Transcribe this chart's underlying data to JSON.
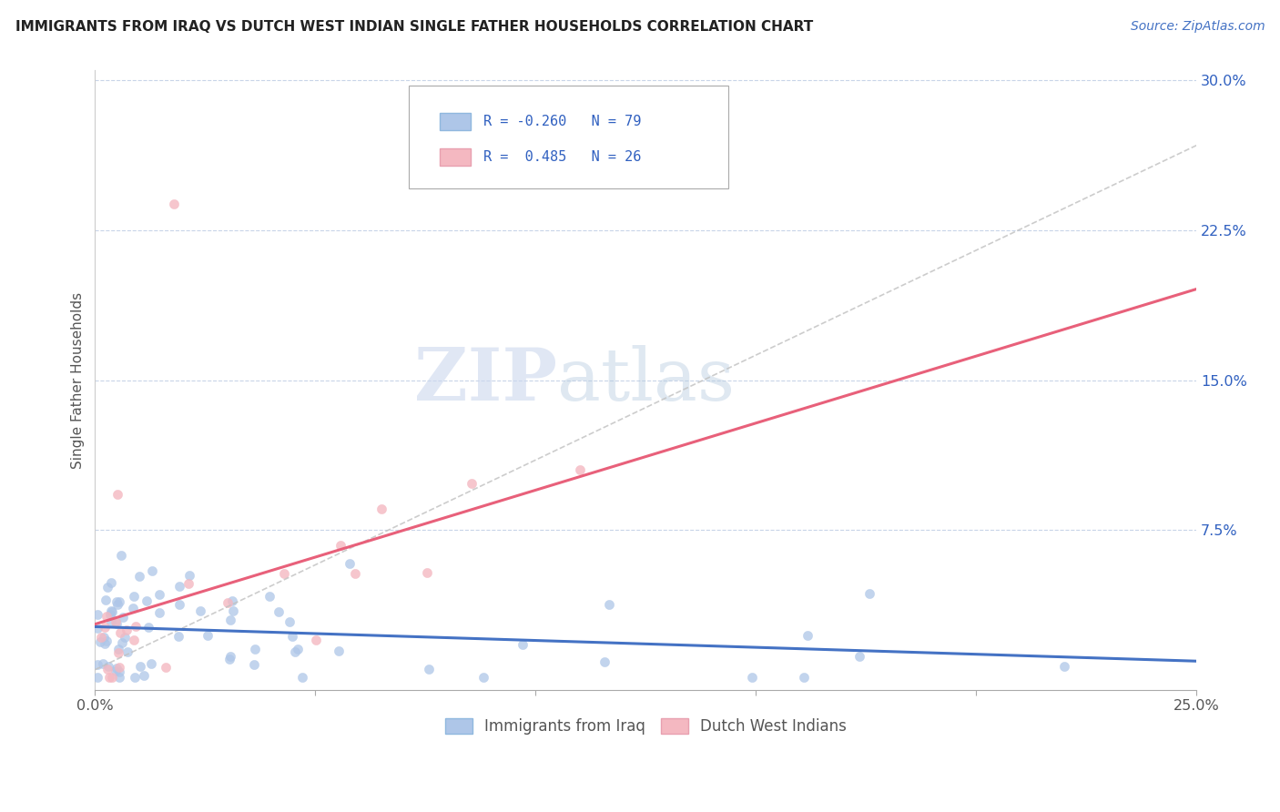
{
  "title": "IMMIGRANTS FROM IRAQ VS DUTCH WEST INDIAN SINGLE FATHER HOUSEHOLDS CORRELATION CHART",
  "source_text": "Source: ZipAtlas.com",
  "ylabel": "Single Father Households",
  "xlim": [
    0.0,
    0.25
  ],
  "ylim": [
    -0.005,
    0.305
  ],
  "ytick_vals": [
    0.075,
    0.15,
    0.225,
    0.3
  ],
  "ytick_labels": [
    "7.5%",
    "15.0%",
    "22.5%",
    "30.0%"
  ],
  "xtick_vals": [
    0.0,
    0.25
  ],
  "xtick_labels": [
    "0.0%",
    "25.0%"
  ],
  "legend_entry1": "Immigrants from Iraq",
  "legend_entry2": "Dutch West Indians",
  "R1": -0.26,
  "N1": 79,
  "R2": 0.485,
  "N2": 26,
  "scatter_color1": "#aec6e8",
  "scatter_color2": "#f4b8c1",
  "line_color1": "#4472c4",
  "line_color2": "#e8607a",
  "line_color_gray": "#c0c0c0",
  "background_color": "#ffffff",
  "grid_color": "#c8d4e8",
  "watermark_zip": "ZIP",
  "watermark_atlas": "atlas",
  "title_fontsize": 11,
  "source_fontsize": 10
}
